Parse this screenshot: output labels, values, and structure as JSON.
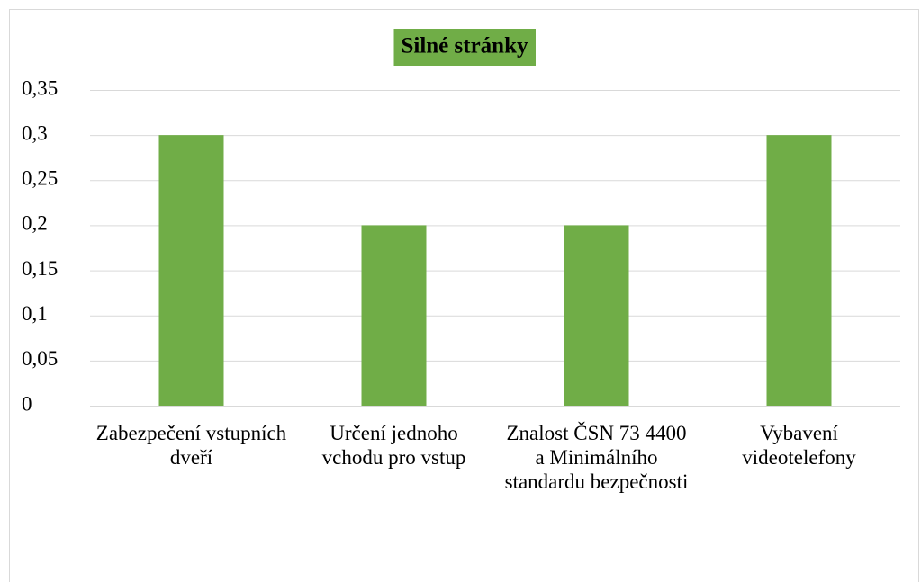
{
  "chart_data": {
    "type": "bar",
    "title": "Silné stránky",
    "categories": [
      "Zabezpečení vstupních dveří",
      "Určení jednoho vchodu pro vstup",
      "Znalost ČSN 73 4400 a Minimálního standardu bezpečnosti",
      "Vybavení videotelefony"
    ],
    "values": [
      0.3,
      0.2,
      0.2,
      0.3
    ],
    "color": "#70ad47",
    "ylim": [
      0,
      0.35
    ],
    "yticks": [
      0,
      {
        "value": 0.05,
        "label": "0,05"
      },
      {
        "value": 0.1,
        "label": "0,1"
      },
      {
        "value": 0.15,
        "label": "0,15"
      },
      {
        "value": 0.2,
        "label": "0,2"
      },
      {
        "value": 0.25,
        "label": "0,25"
      },
      {
        "value": 0.3,
        "label": "0,3"
      },
      {
        "value": 0.35,
        "label": "0,35"
      }
    ],
    "grid": true
  }
}
